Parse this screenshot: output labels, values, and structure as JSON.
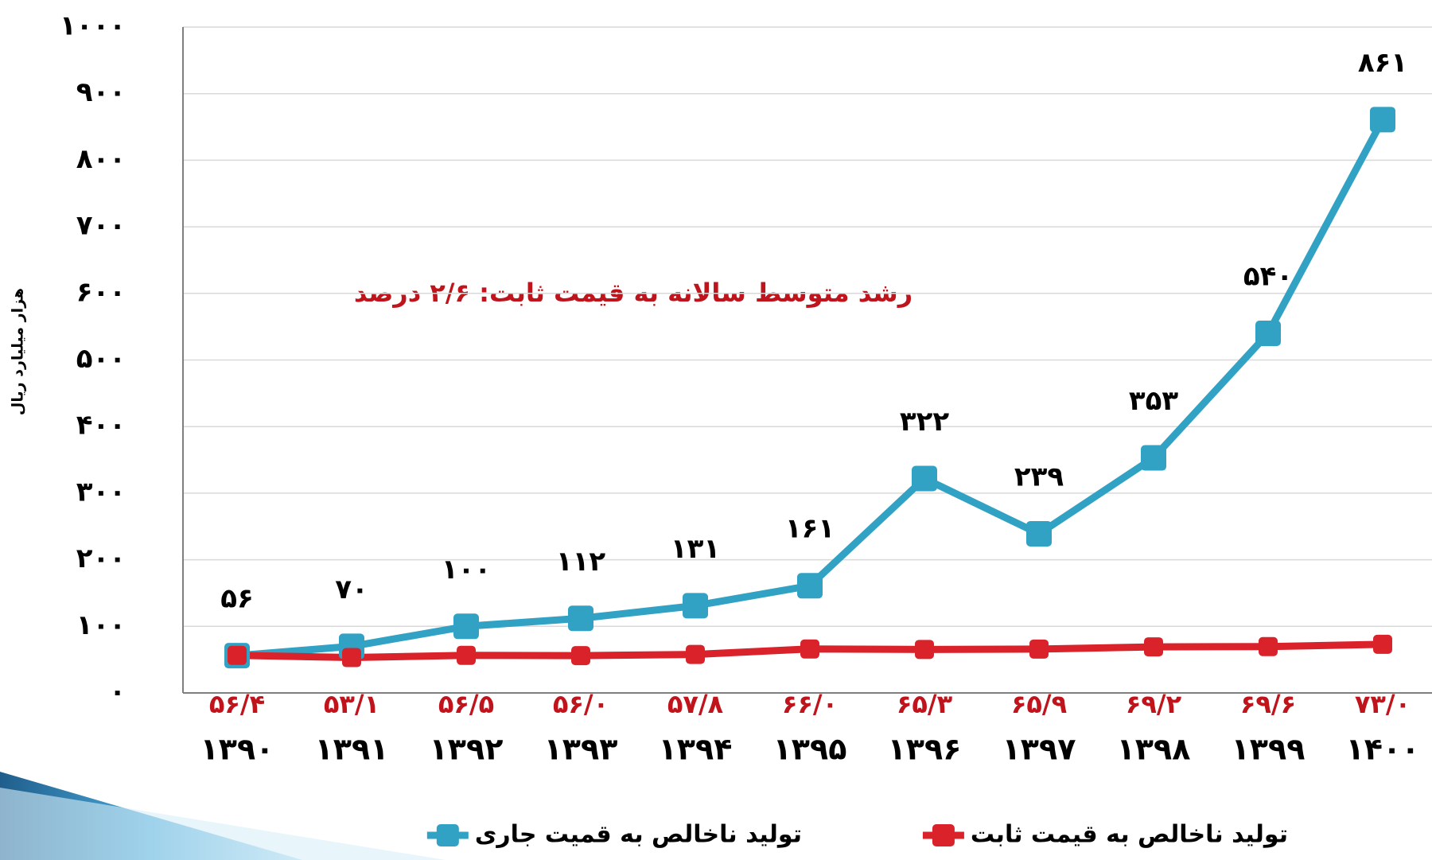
{
  "chart_data": {
    "type": "line",
    "y_label": "هزار میلیارد ریال",
    "annotation": "رشد متوسط سالانه به قیمت ثابت: ۲/۶ درصد",
    "categories": [
      "۱۳۹۰",
      "۱۳۹۱",
      "۱۳۹۲",
      "۱۳۹۳",
      "۱۳۹۴",
      "۱۳۹۵",
      "۱۳۹۶",
      "۱۳۹۷",
      "۱۳۹۸",
      "۱۳۹۹",
      "۱۴۰۰"
    ],
    "series": [
      {
        "name": "تولید ناخالص به قمیت جاری",
        "color": "#31a2c4",
        "values": [
          56,
          70,
          100,
          112,
          131,
          161,
          322,
          239,
          353,
          540,
          861
        ],
        "value_labels": [
          "۵۶",
          "۷۰",
          "۱۰۰",
          "۱۱۲",
          "۱۳۱",
          "۱۶۱",
          "۳۲۲",
          "۲۳۹",
          "۳۵۳",
          "۵۴۰",
          "۸۶۱"
        ]
      },
      {
        "name": "تولید ناخالص به قیمت ثابت",
        "color": "#d9222a",
        "values": [
          56.4,
          53.1,
          56.5,
          56.0,
          57.8,
          66.0,
          65.3,
          65.9,
          69.2,
          69.6,
          73.0
        ],
        "value_labels": [
          "۵۶/۴",
          "۵۳/۱",
          "۵۶/۵",
          "۵۶/۰",
          "۵۷/۸",
          "۶۶/۰",
          "۶۵/۳",
          "۶۵/۹",
          "۶۹/۲",
          "۶۹/۶",
          "۷۳/۰"
        ]
      }
    ],
    "ylim": [
      0,
      1000
    ],
    "yticks": [
      {
        "value": 0,
        "label": "۰"
      },
      {
        "value": 100,
        "label": "۱۰۰"
      },
      {
        "value": 200,
        "label": "۲۰۰"
      },
      {
        "value": 300,
        "label": "۳۰۰"
      },
      {
        "value": 400,
        "label": "۴۰۰"
      },
      {
        "value": 500,
        "label": "۵۰۰"
      },
      {
        "value": 600,
        "label": "۶۰۰"
      },
      {
        "value": 700,
        "label": "۷۰۰"
      },
      {
        "value": 800,
        "label": "۸۰۰"
      },
      {
        "value": 900,
        "label": "۹۰۰"
      },
      {
        "value": 1000,
        "label": "۱۰۰۰"
      }
    ],
    "grid": true,
    "legend": "bottom"
  }
}
